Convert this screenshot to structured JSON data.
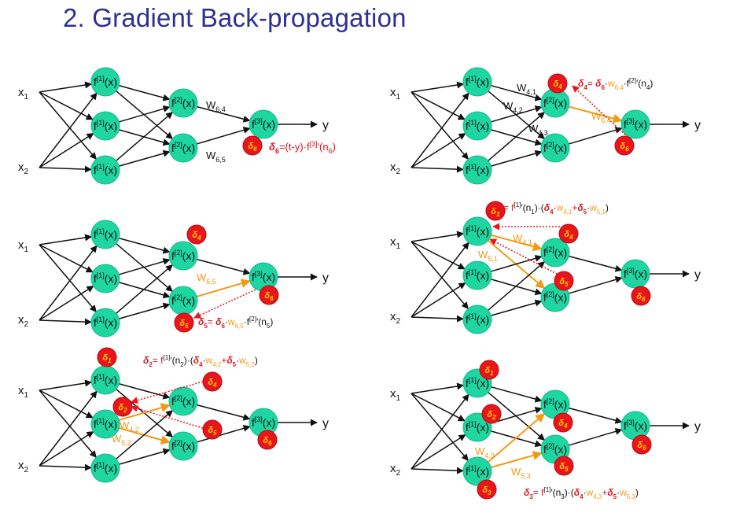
{
  "title": "2. Gradient Back-propagation",
  "labels": {
    "x1": "x",
    "x1_sub": "1",
    "x2": "x",
    "x2_sub": "2",
    "y": "y",
    "f1": "f",
    "f1_sup": "[1]",
    "f2": "f",
    "f2_sup": "[2]",
    "f3": "f",
    "f3_sup": "[3]",
    "arg": "(x)",
    "delta": "δ",
    "d1": "1",
    "d2": "2",
    "d3": "3",
    "d4": "4",
    "d5": "5",
    "d6": "6"
  },
  "weights": {
    "w": "W",
    "w64": "6,4",
    "w65": "6,5",
    "w41": "4,1",
    "w42": "4,2",
    "w43": "4,3",
    "w51": "5,1",
    "w52": "5,2",
    "w53": "5,3"
  },
  "formulas": {
    "f6": {
      "d": "δ",
      "sub": "6",
      "rest": "=(t-y)·f",
      "sup": "[3]",
      "tail": "′(n",
      "tsub": "6",
      "end": ")"
    },
    "f4": {
      "d": "δ",
      "sub": "4",
      "eq": "= ",
      "d2": "δ",
      "sub2": "6",
      "dot": "·",
      "w": "w",
      "wsub": "6,4",
      "rest": "·f",
      "sup": "[2]",
      "tail": "′(n",
      "tsub": "4",
      "end": ")"
    },
    "f5": {
      "d": "δ",
      "sub": "5",
      "eq": "= ",
      "d2": "δ",
      "sub2": "6",
      "dot": "·",
      "w": "w",
      "wsub": "6,5",
      "rest": "·f",
      "sup": "[2]",
      "tail": "′(n",
      "tsub": "5",
      "end": ")"
    },
    "f1": {
      "d": "δ",
      "sub": "1",
      "eq": "= f",
      "sup": "[1]",
      "tail": "′(n",
      "tsub": "1",
      "mid": ")·(",
      "da": "δ",
      "sa": "4",
      "dot": "·",
      "w": "w",
      "wa": "4,1",
      "plus": "+",
      "db": "δ",
      "sb": "5",
      "wb": "5,1",
      "end": ")"
    },
    "f2": {
      "d": "δ",
      "sub": "2",
      "eq": "= f",
      "sup": "[1]",
      "tail": "′(n",
      "tsub": "2",
      "mid": ")·(",
      "da": "δ",
      "sa": "4",
      "dot": "·",
      "w": "w",
      "wa": "4,2",
      "plus": "+",
      "db": "δ",
      "sb": "5",
      "wb": "5,2",
      "end": ")"
    },
    "f3": {
      "d": "δ",
      "sub": "3",
      "eq": "= f",
      "sup": "[1]",
      "tail": "′(n",
      "tsub": "3",
      "mid": ")·(",
      "da": "δ",
      "sa": "4",
      "dot": "·",
      "w": "w",
      "wa": "4,3",
      "plus": "+",
      "db": "δ",
      "sb": "5",
      "wb": "5,3",
      "end": ")"
    }
  },
  "colors": {
    "title": "#2e3192",
    "node_fill": "#1ed6a2",
    "node_stroke": "#17b98a",
    "delta_fill": "#e8151b",
    "delta_stroke": "#b80c10",
    "delta_text": "#ffd400",
    "edge": "#111111",
    "highlight": "#f39a14",
    "arrow_red": "#e8151b",
    "formula_red": "#e0131a",
    "formula_orange": "#f39a14"
  }
}
